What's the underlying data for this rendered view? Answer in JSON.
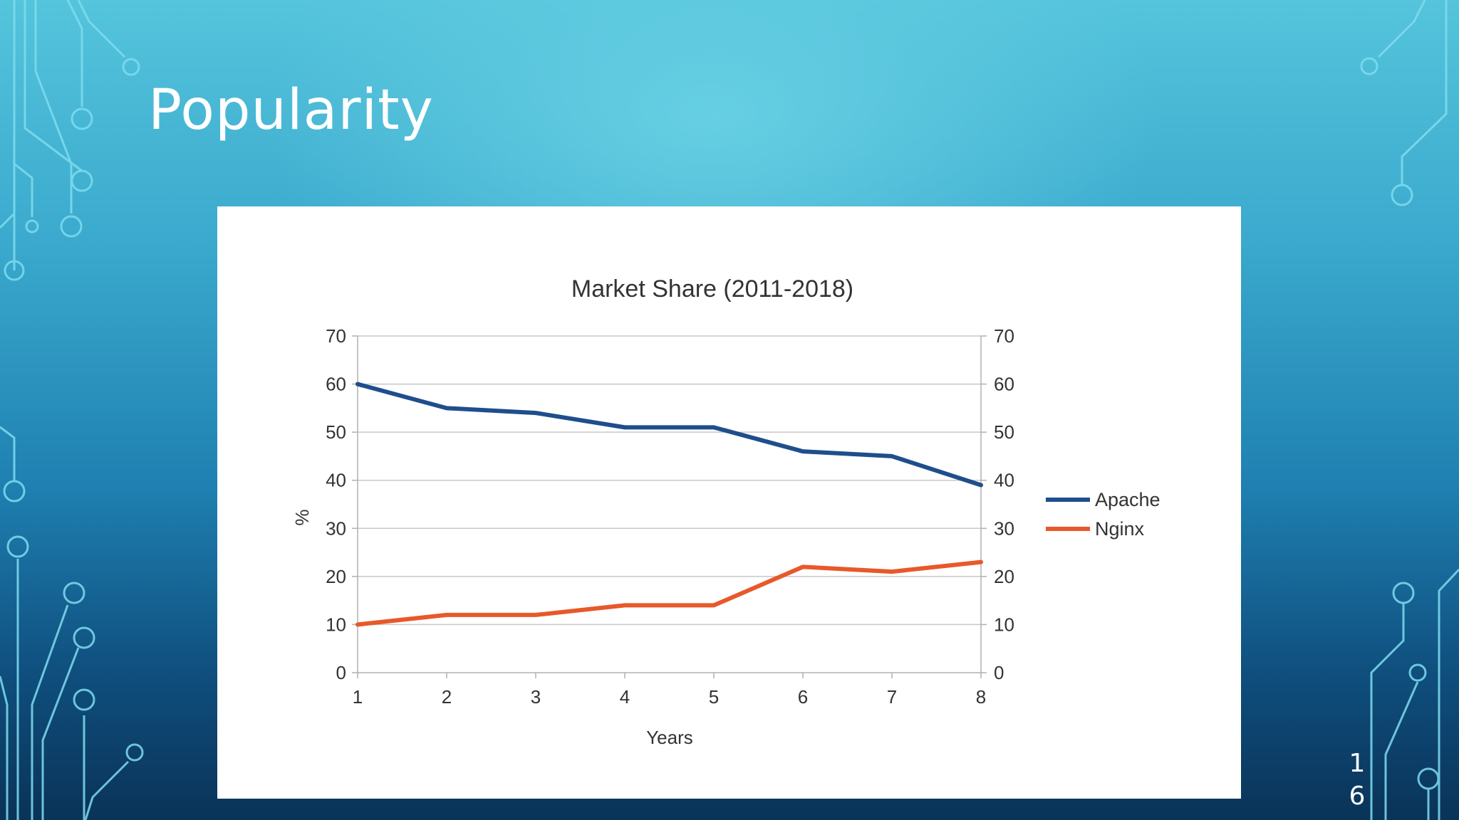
{
  "slide": {
    "title": "Popularity",
    "page_number": "16"
  },
  "colors": {
    "apache": "#1f4e8c",
    "nginx": "#e8582a",
    "circuit": "#7fdcef"
  },
  "chart_data": {
    "type": "line",
    "title": "Market Share (2011-2018)",
    "xlabel": "Years",
    "ylabel": "%",
    "x": [
      1,
      2,
      3,
      4,
      5,
      6,
      7,
      8
    ],
    "ylim": [
      0,
      70
    ],
    "yticks": [
      0,
      10,
      20,
      30,
      40,
      50,
      60,
      70
    ],
    "grid": true,
    "secondary_y_axis": true,
    "legend_position": "right",
    "series": [
      {
        "name": "Apache",
        "values": [
          60,
          55,
          54,
          51,
          51,
          46,
          45,
          39
        ]
      },
      {
        "name": "Nginx",
        "values": [
          10,
          12,
          12,
          14,
          14,
          22,
          21,
          23
        ]
      }
    ]
  }
}
